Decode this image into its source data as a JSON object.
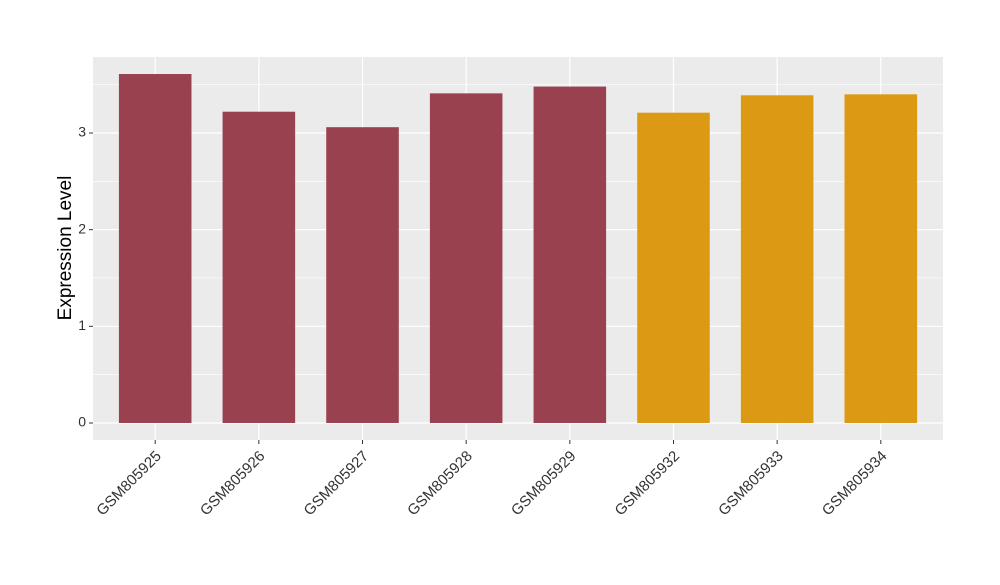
{
  "chart_data": {
    "type": "bar",
    "y_label": "Expression Level",
    "categories": [
      "GSM805925",
      "GSM805926",
      "GSM805927",
      "GSM805928",
      "GSM805929",
      "GSM805932",
      "GSM805933",
      "GSM805934"
    ],
    "values": [
      3.61,
      3.22,
      3.06,
      3.41,
      3.48,
      3.21,
      3.39,
      3.4
    ],
    "colors": [
      "#9a4150",
      "#9a4150",
      "#9a4150",
      "#9a4150",
      "#9a4150",
      "#dc9a14",
      "#dc9a14",
      "#dc9a14"
    ],
    "ylim": [
      -0.176,
      3.786
    ],
    "yticks": [
      0,
      1,
      2,
      3
    ],
    "grid": true
  }
}
